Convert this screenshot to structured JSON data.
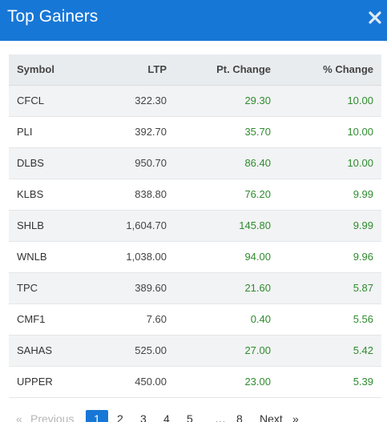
{
  "header": {
    "title": "Top Gainers",
    "close_icon": "close-icon"
  },
  "table": {
    "columns": [
      "Symbol",
      "LTP",
      "Pt. Change",
      "% Change"
    ],
    "rows": [
      {
        "symbol": "CFCL",
        "ltp": "322.30",
        "pt_change": "29.30",
        "pct_change": "10.00"
      },
      {
        "symbol": "PLI",
        "ltp": "392.70",
        "pt_change": "35.70",
        "pct_change": "10.00"
      },
      {
        "symbol": "DLBS",
        "ltp": "950.70",
        "pt_change": "86.40",
        "pct_change": "10.00"
      },
      {
        "symbol": "KLBS",
        "ltp": "838.80",
        "pt_change": "76.20",
        "pct_change": "9.99"
      },
      {
        "symbol": "SHLB",
        "ltp": "1,604.70",
        "pt_change": "145.80",
        "pct_change": "9.99"
      },
      {
        "symbol": "WNLB",
        "ltp": "1,038.00",
        "pt_change": "94.00",
        "pct_change": "9.96"
      },
      {
        "symbol": "TPC",
        "ltp": "389.60",
        "pt_change": "21.60",
        "pct_change": "5.87"
      },
      {
        "symbol": "CMF1",
        "ltp": "7.60",
        "pt_change": "0.40",
        "pct_change": "5.56"
      },
      {
        "symbol": "SAHAS",
        "ltp": "525.00",
        "pt_change": "27.00",
        "pct_change": "5.42"
      },
      {
        "symbol": "UPPER",
        "ltp": "450.00",
        "pt_change": "23.00",
        "pct_change": "5.39"
      }
    ]
  },
  "pagination": {
    "prev_symbol": "«",
    "prev_label": "Previous",
    "pages": [
      "1",
      "2",
      "3",
      "4",
      "5"
    ],
    "ellipsis": "…",
    "last_page": "8",
    "next_label": "Next",
    "next_symbol": "»",
    "current_page": "1"
  },
  "colors": {
    "header_bg": "#1777d6",
    "positive": "#2e8b2e",
    "table_header_bg": "#e9ecef",
    "row_alt_bg": "#f2f3f4"
  }
}
